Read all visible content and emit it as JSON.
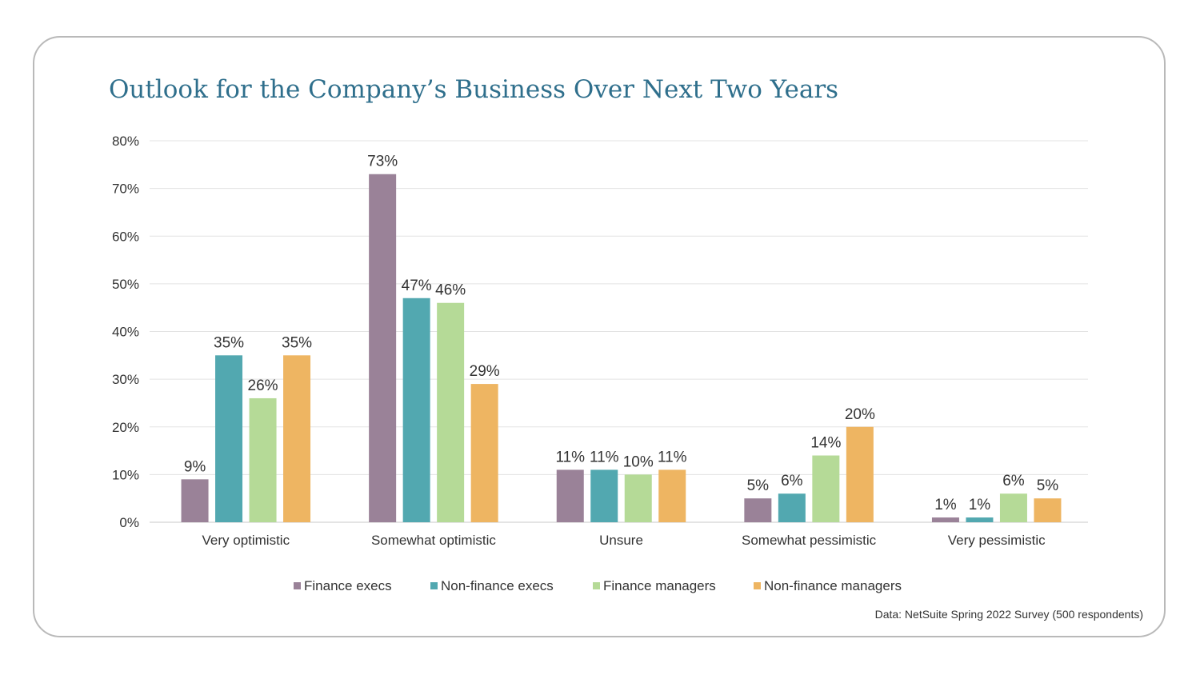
{
  "title": "Outlook for the Company’s Business Over Next Two Years",
  "source_note": "Data: NetSuite Spring 2022 Survey (500 respondents)",
  "chart_data": {
    "type": "bar",
    "title": "Outlook for the Company’s Business Over Next Two Years",
    "categories": [
      "Very optimistic",
      "Somewhat optimistic",
      "Unsure",
      "Somewhat pessimistic",
      "Very pessimistic"
    ],
    "series": [
      {
        "name": "Finance execs",
        "color": "#9a8298",
        "values": [
          9,
          73,
          11,
          5,
          1
        ]
      },
      {
        "name": "Non-finance execs",
        "color": "#52a8b0",
        "values": [
          35,
          47,
          11,
          6,
          1
        ]
      },
      {
        "name": "Finance managers",
        "color": "#b5da97",
        "values": [
          26,
          46,
          10,
          14,
          6
        ]
      },
      {
        "name": "Non-finance managers",
        "color": "#eeb562",
        "values": [
          35,
          29,
          11,
          20,
          5
        ]
      }
    ],
    "y_ticks": [
      "0%",
      "10%",
      "20%",
      "30%",
      "40%",
      "50%",
      "60%",
      "70%",
      "80%"
    ],
    "ylim": [
      0,
      80
    ],
    "value_suffix": "%",
    "grid": true,
    "legend_position": "bottom-center",
    "xlabel": "",
    "ylabel": ""
  }
}
